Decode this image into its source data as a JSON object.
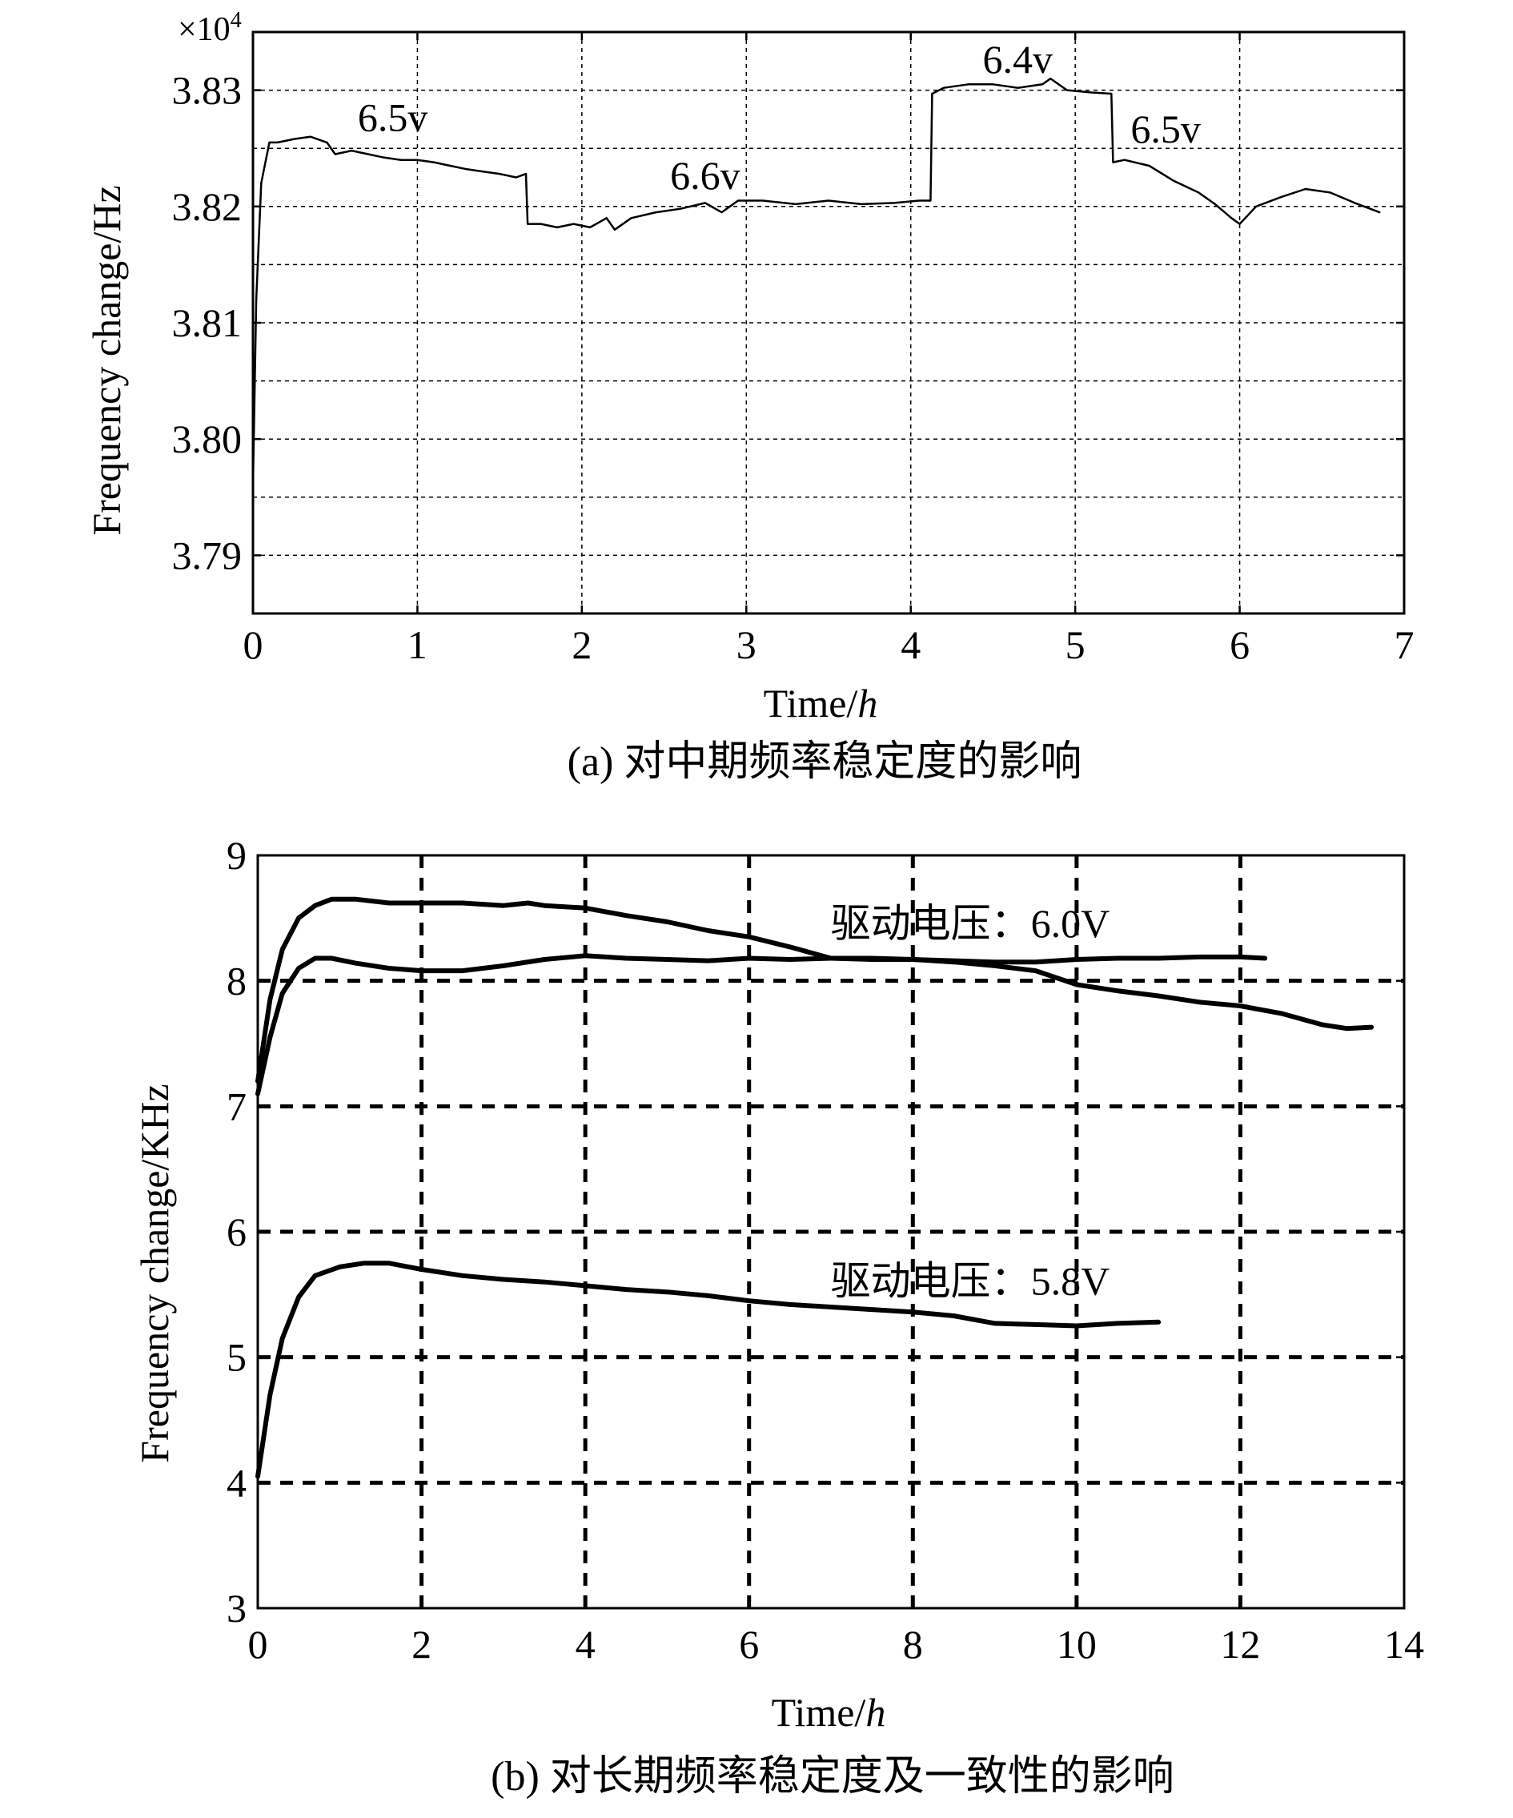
{
  "chart_data": [
    {
      "type": "line",
      "caption": "(a) 对中期频率稳定度的影响",
      "xlabel": "Time/",
      "xlabel_italic": "h",
      "ylabel": "Frequency change/Hz",
      "exponent_base": "×10",
      "exponent_power": "4",
      "xlim": [
        0,
        7
      ],
      "ylim": [
        3.785,
        3.835
      ],
      "xticks": [
        0,
        1,
        2,
        3,
        4,
        5,
        6,
        7
      ],
      "yticks": [
        3.79,
        3.8,
        3.81,
        3.82,
        3.83
      ],
      "ytick_labels": [
        "3.79",
        "3.80",
        "3.81",
        "3.82",
        "3.83"
      ],
      "grid": true,
      "annotations": [
        {
          "text": "6.5v",
          "x": 0.85,
          "y": 3.8265
        },
        {
          "text": "6.6v",
          "x": 2.75,
          "y": 3.8215
        },
        {
          "text": "6.4v",
          "x": 4.65,
          "y": 3.8315
        },
        {
          "text": "6.5v",
          "x": 5.55,
          "y": 3.8255
        }
      ],
      "series": [
        {
          "x": [
            0.0,
            0.02,
            0.05,
            0.1,
            0.15,
            0.25,
            0.35,
            0.45,
            0.5,
            0.6,
            0.7,
            0.8,
            0.9,
            1.0,
            1.1,
            1.2,
            1.3,
            1.4,
            1.5,
            1.6,
            1.66,
            1.67,
            1.75,
            1.85,
            1.95,
            2.05,
            2.15,
            2.2,
            2.3,
            2.45,
            2.6,
            2.75,
            2.85,
            2.95,
            3.1,
            3.3,
            3.5,
            3.7,
            3.9,
            4.05,
            4.12,
            4.13,
            4.2,
            4.35,
            4.5,
            4.65,
            4.8,
            4.85,
            4.95,
            5.1,
            5.22,
            5.23,
            5.3,
            5.45,
            5.6,
            5.75,
            5.85,
            5.95,
            6.0,
            6.1,
            6.25,
            6.4,
            6.55,
            6.7,
            6.85
          ],
          "y": [
            3.796,
            3.812,
            3.822,
            3.8255,
            3.8255,
            3.8258,
            3.826,
            3.8255,
            3.8245,
            3.8248,
            3.8245,
            3.8242,
            3.824,
            3.824,
            3.8238,
            3.8235,
            3.8232,
            3.823,
            3.8228,
            3.8225,
            3.8228,
            3.8185,
            3.8185,
            3.8182,
            3.8185,
            3.8182,
            3.819,
            3.818,
            3.819,
            3.8195,
            3.8198,
            3.8203,
            3.8195,
            3.8205,
            3.8205,
            3.8202,
            3.8205,
            3.8202,
            3.8203,
            3.8205,
            3.8205,
            3.8297,
            3.8302,
            3.8305,
            3.8305,
            3.8302,
            3.8305,
            3.831,
            3.83,
            3.8298,
            3.8297,
            3.8238,
            3.824,
            3.8235,
            3.8222,
            3.8212,
            3.8202,
            3.819,
            3.8185,
            3.82,
            3.8208,
            3.8215,
            3.8212,
            3.8203,
            3.8195
          ]
        }
      ]
    },
    {
      "type": "line",
      "caption": "(b) 对长期频率稳定度及一致性的影响",
      "xlabel": "Time/",
      "xlabel_italic": "h",
      "ylabel": "Frequency change/KHz",
      "xlim": [
        0,
        14
      ],
      "ylim": [
        3,
        9
      ],
      "xticks": [
        0,
        2,
        4,
        6,
        8,
        10,
        12,
        14
      ],
      "yticks": [
        3,
        4,
        5,
        6,
        7,
        8,
        9
      ],
      "grid": true,
      "annotations": [
        {
          "text": "驱动电压：6.0V",
          "x": 8.7,
          "y": 8.35
        },
        {
          "text": "驱动电压：5.8V",
          "x": 8.7,
          "y": 5.5
        }
      ],
      "series": [
        {
          "x": [
            0.0,
            0.15,
            0.3,
            0.5,
            0.7,
            0.9,
            1.2,
            1.6,
            2.0,
            2.5,
            3.0,
            3.3,
            3.5,
            4.0,
            4.5,
            5.0,
            5.5,
            6.0,
            6.5,
            7.0,
            7.5,
            8.0,
            8.5,
            9.0,
            9.5,
            10.0,
            10.5,
            11.0,
            11.5,
            12.0,
            12.3
          ],
          "y": [
            7.2,
            7.85,
            8.25,
            8.5,
            8.6,
            8.65,
            8.65,
            8.62,
            8.62,
            8.62,
            8.6,
            8.62,
            8.6,
            8.58,
            8.52,
            8.47,
            8.4,
            8.35,
            8.27,
            8.18,
            8.17,
            8.17,
            8.16,
            8.15,
            8.15,
            8.17,
            8.18,
            8.18,
            8.19,
            8.19,
            8.18
          ]
        },
        {
          "x": [
            0.0,
            0.15,
            0.3,
            0.5,
            0.7,
            0.9,
            1.2,
            1.6,
            2.0,
            2.5,
            3.0,
            3.5,
            4.0,
            4.5,
            5.0,
            5.5,
            6.0,
            6.5,
            7.0,
            7.5,
            8.0,
            8.5,
            9.0,
            9.5,
            10.0,
            10.5,
            11.0,
            11.5,
            12.0,
            12.5,
            13.0,
            13.3,
            13.6
          ],
          "y": [
            7.1,
            7.55,
            7.9,
            8.1,
            8.18,
            8.18,
            8.14,
            8.1,
            8.08,
            8.08,
            8.12,
            8.17,
            8.2,
            8.18,
            8.17,
            8.16,
            8.18,
            8.17,
            8.18,
            8.18,
            8.17,
            8.15,
            8.12,
            8.08,
            7.97,
            7.92,
            7.88,
            7.83,
            7.8,
            7.74,
            7.65,
            7.62,
            7.63
          ]
        },
        {
          "x": [
            0.0,
            0.15,
            0.3,
            0.5,
            0.7,
            1.0,
            1.3,
            1.6,
            2.0,
            2.5,
            3.0,
            3.5,
            4.0,
            4.5,
            5.0,
            5.5,
            6.0,
            6.5,
            7.0,
            7.5,
            8.0,
            8.5,
            9.0,
            9.5,
            10.0,
            10.5,
            11.0
          ],
          "y": [
            4.05,
            4.7,
            5.15,
            5.48,
            5.65,
            5.72,
            5.75,
            5.75,
            5.7,
            5.65,
            5.62,
            5.6,
            5.57,
            5.54,
            5.52,
            5.49,
            5.45,
            5.42,
            5.4,
            5.38,
            5.36,
            5.33,
            5.27,
            5.26,
            5.25,
            5.27,
            5.28
          ]
        }
      ]
    }
  ]
}
